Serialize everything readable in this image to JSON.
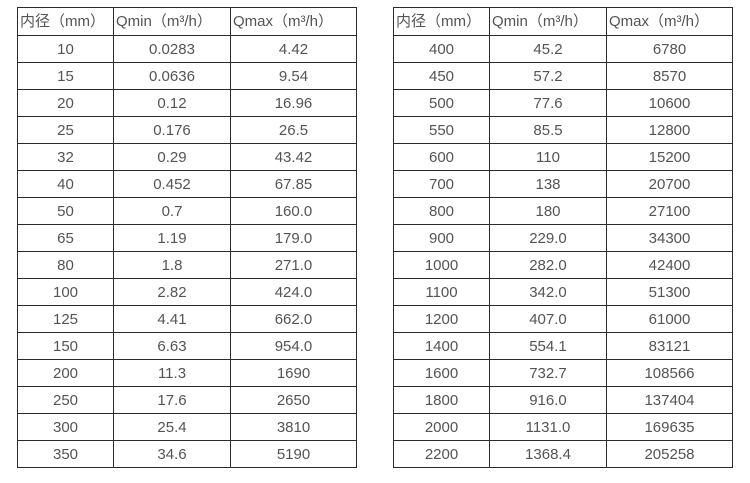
{
  "page": {
    "background_color": "#ffffff",
    "border_color": "#2b2b2b",
    "text_color": "#545454"
  },
  "tables": [
    {
      "name": "flow-table-small-diameters",
      "headers": [
        "内径（mm）",
        "Qmin（m³/h）",
        "Qmax（m³/h）"
      ],
      "rows": [
        [
          "10",
          "0.0283",
          "4.42"
        ],
        [
          "15",
          "0.0636",
          "9.54"
        ],
        [
          "20",
          "0.12",
          "16.96"
        ],
        [
          "25",
          "0.176",
          "26.5"
        ],
        [
          "32",
          "0.29",
          "43.42"
        ],
        [
          "40",
          "0.452",
          "67.85"
        ],
        [
          "50",
          "0.7",
          "160.0"
        ],
        [
          "65",
          "1.19",
          "179.0"
        ],
        [
          "80",
          "1.8",
          "271.0"
        ],
        [
          "100",
          "2.82",
          "424.0"
        ],
        [
          "125",
          "4.41",
          "662.0"
        ],
        [
          "150",
          "6.63",
          "954.0"
        ],
        [
          "200",
          "11.3",
          "1690"
        ],
        [
          "250",
          "17.6",
          "2650"
        ],
        [
          "300",
          "25.4",
          "3810"
        ],
        [
          "350",
          "34.6",
          "5190"
        ]
      ]
    },
    {
      "name": "flow-table-large-diameters",
      "headers": [
        "内径（mm）",
        "Qmin（m³/h）",
        "Qmax（m³/h）"
      ],
      "rows": [
        [
          "400",
          "45.2",
          "6780"
        ],
        [
          "450",
          "57.2",
          "8570"
        ],
        [
          "500",
          "77.6",
          "10600"
        ],
        [
          "550",
          "85.5",
          "12800"
        ],
        [
          "600",
          "110",
          "15200"
        ],
        [
          "700",
          "138",
          "20700"
        ],
        [
          "800",
          "180",
          "27100"
        ],
        [
          "900",
          "229.0",
          "34300"
        ],
        [
          "1000",
          "282.0",
          "42400"
        ],
        [
          "1100",
          "342.0",
          "51300"
        ],
        [
          "1200",
          "407.0",
          "61000"
        ],
        [
          "1400",
          "554.1",
          "83121"
        ],
        [
          "1600",
          "732.7",
          "108566"
        ],
        [
          "1800",
          "916.0",
          "137404"
        ],
        [
          "2000",
          "1131.0",
          "169635"
        ],
        [
          "2200",
          "1368.4",
          "205258"
        ]
      ]
    }
  ]
}
